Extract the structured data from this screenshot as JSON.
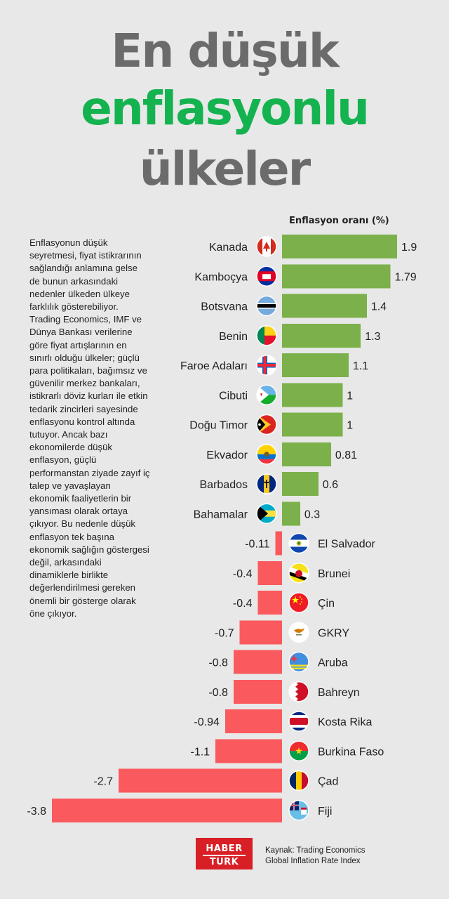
{
  "title": {
    "line1": "En düşük",
    "line2": "enflasyonlu",
    "line3": "ülkeler"
  },
  "description": "Enflasyonun düşük seyretmesi, fiyat istikrarının sağlandığı anlamına gelse de bunun arkasındaki nedenler ülkeden ülkeye farklılık gösterebiliyor. Trading Economics, IMF ve Dünya Bankası verilerine göre fiyat artışlarının en sınırlı olduğu ülkeler; güçlü para politikaları, bağımsız ve güvenilir merkez bankaları, istikrarlı döviz kurları ile etkin tedarik zincirleri sayesinde enflasyonu kontrol altında tutuyor. Ancak bazı ekonomilerde düşük enflasyon, güçlü performanstan ziyade zayıf iç talep ve yavaşlayan ekonomik faaliyetlerin bir yansıması olarak ortaya çıkıyor. Bu nedenle düşük enflasyon tek başına ekonomik sağlığın göstergesi değil, arkasındaki dinamiklerle birlikte değerlendirilmesi gereken önemli bir gösterge olarak öne çıkıyor.",
  "colors": {
    "positive": "#7cb04a",
    "negative": "#fa5a5d",
    "title_gray": "#6b6b6b",
    "title_green": "#14b34f",
    "background": "#e8e8e8"
  },
  "chart_data": {
    "type": "bar",
    "orientation": "horizontal",
    "title": "Enflasyon oranı (%)",
    "categories": [
      "Kanada",
      "Kamboçya",
      "Botsvana",
      "Benin",
      "Faroe Adaları",
      "Cibuti",
      "Doğu Timor",
      "Ekvador",
      "Barbados",
      "Bahamalar",
      "El Salvador",
      "Brunei",
      "Çin",
      "GKRY",
      "Aruba",
      "Bahreyn",
      "Kosta Rika",
      "Burkina Faso",
      "Çad",
      "Fiji"
    ],
    "values": [
      1.9,
      1.79,
      1.4,
      1.3,
      1.1,
      1,
      1,
      0.81,
      0.6,
      0.3,
      -0.11,
      -0.4,
      -0.4,
      -0.7,
      -0.8,
      -0.8,
      -0.94,
      -1.1,
      -2.7,
      -3.8
    ],
    "value_labels": [
      "1.9",
      "1.79",
      "1.4",
      "1.3",
      "1.1",
      "1",
      "1",
      "0.81",
      "0.6",
      "0.3",
      "-0.11",
      "-0.4",
      "-0.4",
      "-0.7",
      "-0.8",
      "-0.8",
      "-0.94",
      "-1.1",
      "-2.7",
      "-3.8"
    ],
    "flag_icons": [
      "canada-flag-icon",
      "cambodia-flag-icon",
      "botswana-flag-icon",
      "benin-flag-icon",
      "faroe-islands-flag-icon",
      "djibouti-flag-icon",
      "timor-leste-flag-icon",
      "ecuador-flag-icon",
      "barbados-flag-icon",
      "bahamas-flag-icon",
      "el-salvador-flag-icon",
      "brunei-flag-icon",
      "china-flag-icon",
      "cyprus-flag-icon",
      "aruba-flag-icon",
      "bahrain-flag-icon",
      "costa-rica-flag-icon",
      "burkina-faso-flag-icon",
      "chad-flag-icon",
      "fiji-flag-icon"
    ],
    "xlim": [
      -3.8,
      1.9
    ],
    "grid": false,
    "legend": "none"
  },
  "logo": {
    "line1": "HABER",
    "line2": "TURK"
  },
  "source": {
    "line1": "Kaynak: Trading Economics",
    "line2": "Global Inflation Rate Index"
  }
}
